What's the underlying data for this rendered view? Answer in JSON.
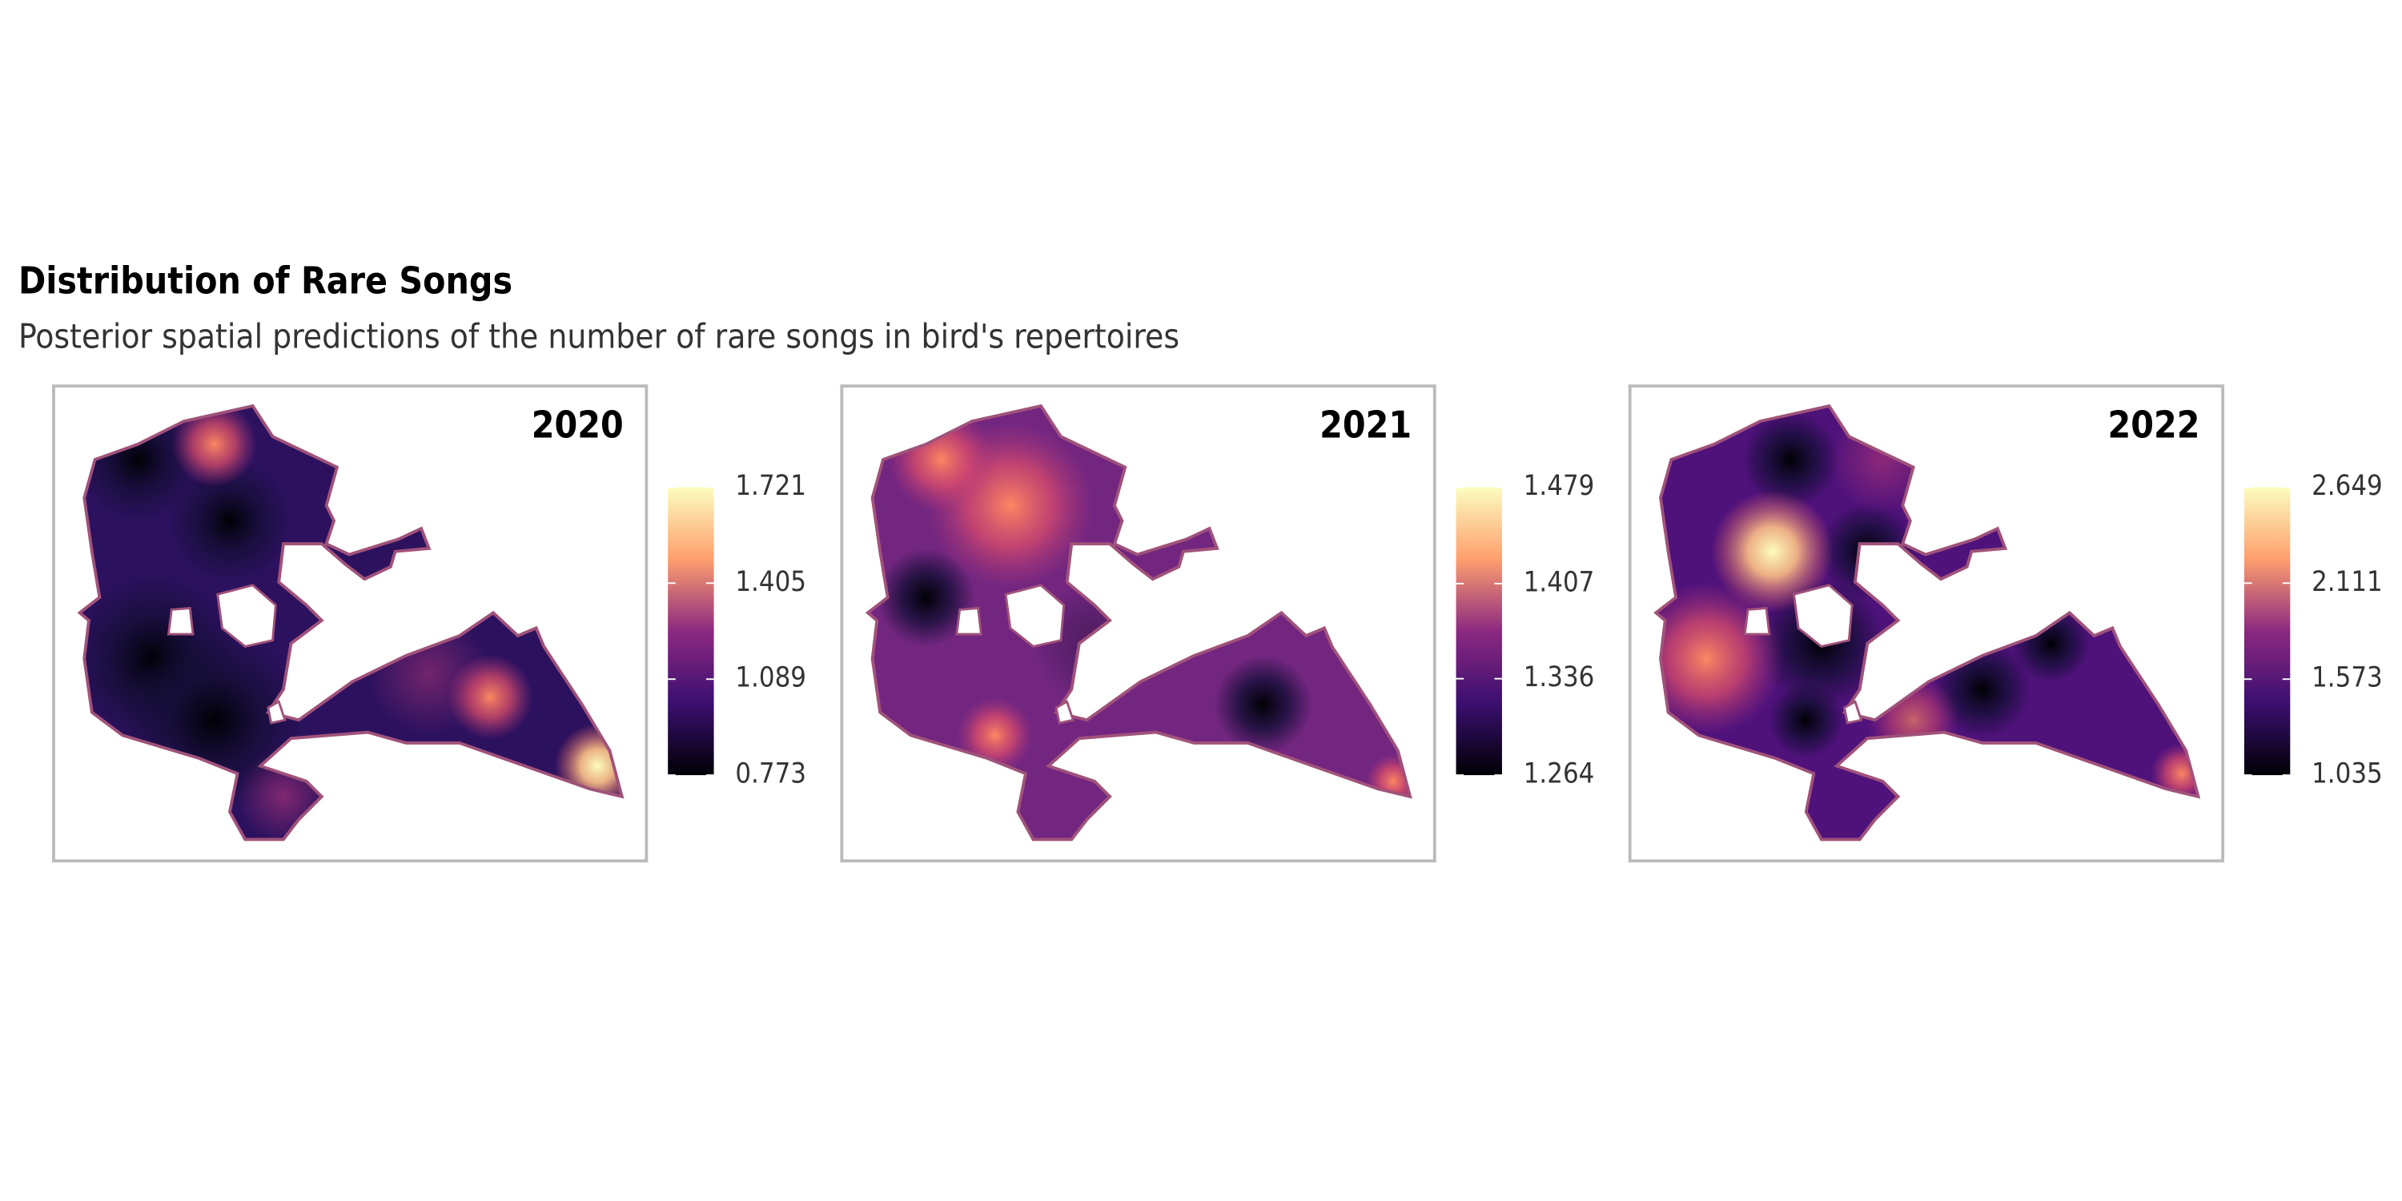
{
  "title": "Distribution of Rare Songs",
  "subtitle": "Posterior spatial predictions of the number of rare songs in bird's repertoires",
  "panels": [
    {
      "label": "2020",
      "colorbar": {
        "lim": [
          0.773,
          1.721
        ],
        "ticks": [
          0.773,
          1.089,
          1.405,
          1.721
        ]
      }
    },
    {
      "label": "2021",
      "colorbar": {
        "lim": [
          1.264,
          1.479
        ],
        "ticks": [
          1.264,
          1.336,
          1.407,
          1.479
        ]
      }
    },
    {
      "label": "2022",
      "colorbar": {
        "lim": [
          1.035,
          2.649
        ],
        "ticks": [
          1.035,
          1.573,
          2.111,
          2.649
        ]
      }
    }
  ]
}
